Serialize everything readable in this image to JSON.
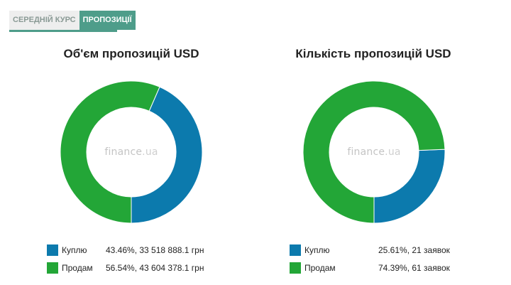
{
  "tabs": [
    {
      "label": "СЕРЕДНІЙ КУРС",
      "active": false
    },
    {
      "label": "ПРОПОЗИЦІЇ",
      "active": true
    }
  ],
  "watermark": {
    "name": "finance",
    "tld": ".ua"
  },
  "colors": {
    "buy": "#0c7aad",
    "sell": "#23a637"
  },
  "chart_data": [
    {
      "type": "pie",
      "title": "Об'єм пропозицій USD",
      "categories": [
        "Куплю",
        "Продам"
      ],
      "values": [
        43.46,
        56.54
      ],
      "legend_values": [
        "43.46%, 33 518 888.1 грн",
        "56.54%, 43 604 378.1 грн"
      ],
      "colors": [
        "#0c7aad",
        "#23a637"
      ],
      "legend": "bottom"
    },
    {
      "type": "pie",
      "title": "Кількість пропозицій USD",
      "categories": [
        "Куплю",
        "Продам"
      ],
      "values": [
        25.61,
        74.39
      ],
      "legend_values": [
        "25.61%, 21 заявок",
        "74.39%, 61 заявок"
      ],
      "colors": [
        "#0c7aad",
        "#23a637"
      ],
      "legend": "bottom"
    }
  ]
}
